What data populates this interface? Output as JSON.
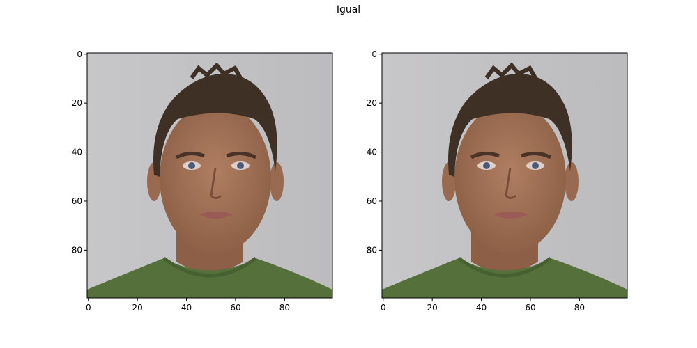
{
  "figure": {
    "title": "Igual"
  },
  "chart_data": [
    {
      "type": "image",
      "title": "",
      "xlabel": "",
      "ylabel": "",
      "xlim": [
        -0.5,
        99.5
      ],
      "ylim": [
        99.5,
        -0.5
      ],
      "xticks": [
        0,
        20,
        40,
        60,
        80
      ],
      "yticks": [
        0,
        20,
        40,
        60,
        80
      ],
      "grid": false,
      "content": "face-photo"
    },
    {
      "type": "image",
      "title": "",
      "xlabel": "",
      "ylabel": "",
      "xlim": [
        -0.5,
        99.5
      ],
      "ylim": [
        99.5,
        -0.5
      ],
      "xticks": [
        0,
        20,
        40,
        60,
        80
      ],
      "yticks": [
        0,
        20,
        40,
        60,
        80
      ],
      "grid": false,
      "content": "face-photo"
    }
  ],
  "colors": {
    "background": "#c2c2c4",
    "skin": "#a47458",
    "hair": "#3e3024",
    "shirt": "#56703c",
    "lips": "#9a5a55",
    "eyes": "#4b5a78"
  }
}
